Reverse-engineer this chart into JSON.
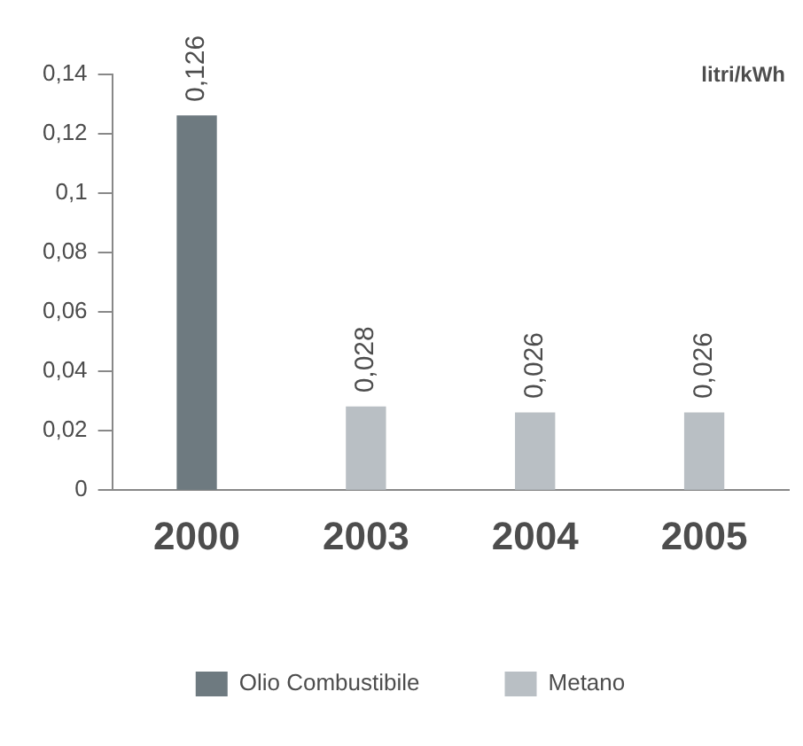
{
  "chart_data": {
    "type": "bar",
    "categories": [
      "2000",
      "2003",
      "2004",
      "2005"
    ],
    "series": [
      {
        "name": "Olio Combustibile",
        "color": "#6e7a80",
        "values": [
          0.126,
          null,
          null,
          null
        ],
        "value_labels": [
          "0,126",
          null,
          null,
          null
        ]
      },
      {
        "name": "Metano",
        "color": "#b9bfc4",
        "values": [
          null,
          0.028,
          0.026,
          0.026
        ],
        "value_labels": [
          null,
          "0,028",
          "0,026",
          "0,026"
        ]
      }
    ],
    "ylim": [
      0,
      0.14
    ],
    "yticks": [
      {
        "value": 0,
        "label": "0"
      },
      {
        "value": 0.02,
        "label": "0,02"
      },
      {
        "value": 0.04,
        "label": "0,04"
      },
      {
        "value": 0.06,
        "label": "0,06"
      },
      {
        "value": 0.08,
        "label": "0,08"
      },
      {
        "value": 0.1,
        "label": "0,1"
      },
      {
        "value": 0.12,
        "label": "0,12"
      },
      {
        "value": 0.14,
        "label": "0,14"
      }
    ],
    "annotations": [
      "litri/kWh"
    ],
    "grid": false,
    "legend": "bottom"
  }
}
